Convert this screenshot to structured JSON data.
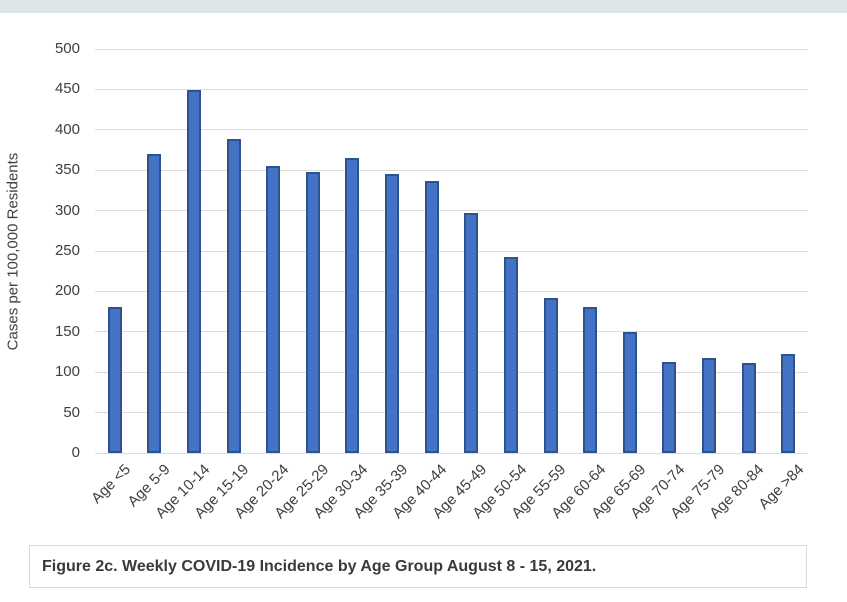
{
  "page": {
    "background": "#ffffff",
    "top_strip_color": "#dfe6e9"
  },
  "chart_data": {
    "type": "bar",
    "title": "",
    "xlabel": "",
    "ylabel": "Cases per 100,000 Residents",
    "ylim": [
      0,
      500
    ],
    "yticks": [
      0,
      50,
      100,
      150,
      200,
      250,
      300,
      350,
      400,
      450,
      500
    ],
    "categories": [
      "Age <5",
      "Age 5-9",
      "Age 10-14",
      "Age 15-19",
      "Age 20-24",
      "Age 25-29",
      "Age 30-34",
      "Age 35-39",
      "Age 40-44",
      "Age 45-49",
      "Age 50-54",
      "Age 55-59",
      "Age 60-64",
      "Age 65-69",
      "Age 70-74",
      "Age 75-79",
      "Age 80-84",
      "Age >84"
    ],
    "values": [
      181,
      370,
      449,
      388,
      355,
      348,
      365,
      345,
      337,
      297,
      243,
      192,
      181,
      150,
      113,
      117,
      112,
      122
    ],
    "grid": true,
    "legend_position": "none",
    "bar_fill": "#4472c4",
    "bar_border": "#2e538c",
    "gridline_color": "#dcdcdc",
    "axis_text_color": "#404040"
  },
  "caption": {
    "text": "Figure 2c. Weekly COVID-19 Incidence by Age Group August 8 - 15, 2021."
  }
}
